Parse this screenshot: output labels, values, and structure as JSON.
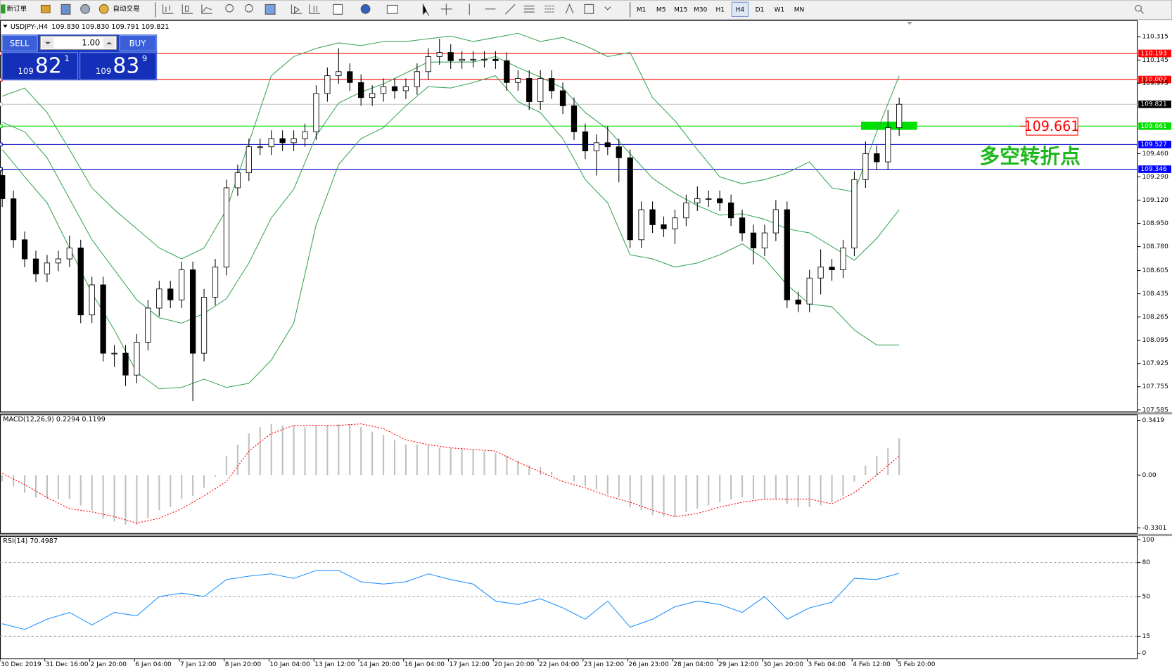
{
  "toolbar": {
    "new_order": "新订单",
    "auto_trading": "自动交易",
    "timeframes": [
      "M1",
      "M5",
      "M15",
      "M30",
      "H1",
      "H4",
      "D1",
      "W1",
      "MN"
    ],
    "active_timeframe": "H4"
  },
  "trade_panel": {
    "sell": "SELL",
    "buy": "BUY",
    "lots": "1.00",
    "sell_price": {
      "big": "109",
      "pips": "82",
      "fraction": "1"
    },
    "buy_price": {
      "big": "109",
      "pips": "83",
      "fraction": "9"
    }
  },
  "chart_data": [
    {
      "type": "candlestick",
      "title": "USDJPY-,H4",
      "subtitle": "109.830 109.830 109.791 109.821",
      "up_color": "#ffffff",
      "down_color": "#000000",
      "open": [
        109.3,
        109.13,
        108.83,
        108.69,
        108.58,
        108.66,
        108.69,
        108.77,
        108.28,
        108.5,
        108.0,
        108.0,
        107.84,
        108.08,
        108.33,
        108.47,
        108.39,
        108.61,
        108.0,
        108.41,
        108.63,
        109.21,
        109.32,
        109.51,
        109.51,
        109.57,
        109.54,
        109.57,
        109.62,
        109.9,
        110.03,
        110.06,
        109.98,
        109.87,
        109.9,
        109.95,
        109.92,
        109.95,
        110.06,
        110.17,
        110.2,
        110.14,
        110.15,
        110.15,
        110.15,
        110.14,
        109.98,
        110.01,
        109.84,
        110.01,
        109.92,
        109.81,
        109.62,
        109.48,
        109.54,
        109.51,
        109.43,
        108.83,
        109.05,
        108.94,
        108.91,
        108.99,
        109.1,
        109.13,
        109.13,
        109.1,
        108.99,
        108.88,
        108.77,
        108.88,
        109.05,
        108.39,
        108.36,
        108.55,
        108.63,
        108.61,
        108.77,
        109.27,
        109.46,
        109.4,
        109.65
      ],
      "high": [
        109.36,
        109.19,
        108.89,
        108.75,
        108.72,
        108.75,
        108.86,
        108.83,
        108.56,
        108.56,
        108.06,
        108.06,
        108.14,
        108.39,
        108.53,
        108.53,
        108.67,
        108.67,
        108.47,
        108.69,
        109.27,
        109.38,
        109.57,
        109.57,
        109.63,
        109.63,
        109.63,
        109.68,
        109.96,
        110.09,
        110.23,
        110.12,
        110.04,
        109.96,
        110.01,
        110.01,
        110.01,
        110.12,
        110.23,
        110.3,
        110.26,
        110.21,
        110.21,
        110.21,
        110.21,
        110.2,
        110.07,
        110.07,
        110.07,
        110.07,
        109.98,
        109.87,
        109.68,
        109.6,
        109.66,
        109.57,
        109.49,
        109.11,
        109.11,
        109.0,
        109.05,
        109.16,
        109.22,
        109.19,
        109.19,
        109.16,
        109.05,
        108.94,
        108.94,
        109.12,
        109.11,
        108.45,
        108.61,
        108.76,
        108.69,
        108.83,
        109.33,
        109.55,
        109.52,
        109.78,
        109.87
      ],
      "low": [
        109.07,
        108.77,
        108.63,
        108.52,
        108.52,
        108.6,
        108.63,
        108.22,
        108.22,
        107.94,
        107.9,
        107.76,
        107.78,
        108.02,
        108.27,
        108.33,
        108.33,
        107.65,
        107.94,
        108.35,
        108.57,
        109.15,
        109.26,
        109.45,
        109.45,
        109.48,
        109.48,
        109.51,
        109.56,
        109.84,
        109.97,
        109.92,
        109.81,
        109.81,
        109.84,
        109.86,
        109.86,
        109.89,
        110.0,
        110.11,
        110.08,
        110.08,
        110.09,
        110.09,
        110.08,
        109.92,
        109.92,
        109.78,
        109.78,
        109.86,
        109.75,
        109.56,
        109.42,
        109.3,
        109.45,
        109.25,
        108.77,
        108.77,
        108.88,
        108.85,
        108.8,
        108.93,
        109.04,
        109.07,
        109.04,
        108.93,
        108.82,
        108.65,
        108.71,
        108.82,
        108.33,
        108.3,
        108.3,
        108.43,
        108.53,
        108.55,
        108.71,
        109.21,
        109.34,
        109.34,
        109.59
      ],
      "close": [
        109.13,
        108.83,
        108.69,
        108.58,
        108.66,
        108.69,
        108.77,
        108.28,
        108.5,
        108.0,
        108.0,
        107.84,
        108.08,
        108.33,
        108.47,
        108.39,
        108.61,
        108.0,
        108.41,
        108.63,
        109.21,
        109.32,
        109.51,
        109.51,
        109.57,
        109.54,
        109.57,
        109.62,
        109.9,
        110.03,
        110.06,
        109.98,
        109.87,
        109.9,
        109.95,
        109.92,
        109.95,
        110.06,
        110.17,
        110.2,
        110.14,
        110.15,
        110.15,
        110.15,
        110.14,
        109.98,
        110.01,
        109.84,
        110.01,
        109.92,
        109.81,
        109.62,
        109.48,
        109.54,
        109.51,
        109.43,
        108.83,
        109.05,
        108.94,
        108.91,
        108.99,
        109.1,
        109.13,
        109.13,
        109.1,
        108.99,
        108.88,
        108.77,
        108.88,
        109.05,
        108.39,
        108.36,
        108.55,
        108.63,
        108.61,
        108.77,
        109.27,
        109.46,
        109.4,
        109.65,
        109.821
      ],
      "bands": {
        "color": "#3aa655",
        "upper": [
          109.88,
          109.94,
          109.76,
          109.49,
          109.21,
          109.05,
          108.91,
          108.77,
          108.69,
          108.77,
          109.05,
          109.54,
          110.03,
          110.17,
          110.23,
          110.27,
          110.25,
          110.28,
          110.28,
          110.3,
          110.32,
          110.28,
          110.31,
          110.34,
          110.28,
          110.31,
          110.25,
          110.17,
          110.2,
          109.87,
          109.7,
          109.49,
          109.29,
          109.24,
          109.27,
          109.32,
          109.4,
          109.21,
          109.18,
          109.62,
          110.03
        ],
        "middle": [
          109.69,
          109.62,
          109.43,
          109.13,
          108.83,
          108.61,
          108.39,
          108.26,
          108.22,
          108.29,
          108.4,
          108.66,
          108.99,
          109.2,
          109.59,
          109.83,
          109.91,
          109.97,
          110.05,
          110.13,
          110.13,
          110.13,
          110.17,
          110.09,
          110.02,
          109.94,
          109.76,
          109.64,
          109.46,
          109.28,
          109.17,
          109.08,
          109.01,
          109.02,
          108.98,
          108.91,
          108.88,
          108.78,
          108.68,
          108.84,
          109.05
        ],
        "lower": [
          109.49,
          109.29,
          109.1,
          108.77,
          108.44,
          108.17,
          107.86,
          107.74,
          107.75,
          107.81,
          107.75,
          107.78,
          107.95,
          108.22,
          108.94,
          109.38,
          109.57,
          109.65,
          109.81,
          109.95,
          109.94,
          109.98,
          110.03,
          109.84,
          109.76,
          109.57,
          109.27,
          109.1,
          108.72,
          108.69,
          108.63,
          108.66,
          108.72,
          108.8,
          108.69,
          108.5,
          108.36,
          108.34,
          108.17,
          108.06,
          108.06
        ]
      },
      "levels": [
        {
          "value": 110.193,
          "color": "#ff0000",
          "box": "#ff0000"
        },
        {
          "value": 110.002,
          "color": "#ff0000",
          "box": "#ff0000"
        },
        {
          "value": 109.821,
          "color": "#c0c0c0",
          "box": "#000000"
        },
        {
          "value": 109.661,
          "color": "#00e000",
          "box": "#00e000"
        },
        {
          "value": 109.527,
          "color": "#0000c8",
          "box": "#0000ff"
        },
        {
          "value": 109.346,
          "color": "#0000c8",
          "box": "#0000ff"
        }
      ],
      "ylim": [
        107.574,
        110.43
      ],
      "yticks": [
        110.315,
        110.145,
        109.975,
        {
          "value": 109.46,
          "label": "109.460"
        },
        {
          "value": 109.29,
          "label": "109.290"
        },
        {
          "value": 109.12,
          "label": "109.120"
        },
        {
          "value": 108.95,
          "label": "108.950"
        },
        {
          "value": 108.78,
          "label": "108.780"
        },
        108.605,
        108.435,
        108.265,
        108.095,
        107.925,
        107.755,
        107.585
      ],
      "x_labels": [
        "30 Dec 2019",
        "31 Dec 16:00",
        "2 Jan 20:00",
        "6 Jan 04:00",
        "7 Jan 12:00",
        "8 Jan 20:00",
        "10 Jan 04:00",
        "13 Jan 12:00",
        "14 Jan 20:00",
        "16 Jan 04:00",
        "17 Jan 12:00",
        "20 Jan 20:00",
        "22 Jan 04:00",
        "23 Jan 12:00",
        "26 Jan 23:00",
        "28 Jan 04:00",
        "29 Jan 12:00",
        "30 Jan 20:00",
        "3 Feb 04:00",
        "4 Feb 12:00",
        "5 Feb 20:00"
      ],
      "annotations": [
        "109.661",
        "多空转折点"
      ]
    },
    {
      "type": "macd",
      "title": "MACD(12,26,9) 0.2294 0.1199",
      "hist_color": "#c0c0c0",
      "signal_color": "#ff0000",
      "histogram": [
        -0.04,
        -0.07,
        -0.11,
        -0.14,
        -0.15,
        -0.15,
        -0.15,
        -0.19,
        -0.22,
        -0.27,
        -0.29,
        -0.31,
        -0.31,
        -0.27,
        -0.22,
        -0.2,
        -0.15,
        -0.13,
        -0.08,
        -0.01,
        0.12,
        0.19,
        0.26,
        0.3,
        0.32,
        0.31,
        0.31,
        0.3,
        0.31,
        0.31,
        0.32,
        0.32,
        0.3,
        0.27,
        0.25,
        0.22,
        0.19,
        0.19,
        0.19,
        0.17,
        0.17,
        0.17,
        0.16,
        0.15,
        0.14,
        0.12,
        0.09,
        0.06,
        0.05,
        0.02,
        0.0,
        -0.04,
        -0.07,
        -0.09,
        -0.12,
        -0.14,
        -0.2,
        -0.22,
        -0.25,
        -0.26,
        -0.26,
        -0.23,
        -0.21,
        -0.19,
        -0.17,
        -0.15,
        -0.14,
        -0.15,
        -0.15,
        -0.15,
        -0.18,
        -0.2,
        -0.2,
        -0.19,
        -0.17,
        -0.13,
        -0.04,
        0.06,
        0.12,
        0.17,
        0.2294
      ],
      "signal": [
        0.01,
        -0.06,
        -0.14,
        -0.21,
        -0.23,
        -0.26,
        -0.3,
        -0.27,
        -0.21,
        -0.13,
        -0.04,
        0.15,
        0.26,
        0.31,
        0.31,
        0.31,
        0.32,
        0.29,
        0.22,
        0.19,
        0.17,
        0.16,
        0.15,
        0.08,
        0.02,
        -0.04,
        -0.08,
        -0.13,
        -0.17,
        -0.22,
        -0.26,
        -0.24,
        -0.2,
        -0.17,
        -0.15,
        -0.15,
        -0.15,
        -0.18,
        -0.11,
        0.0,
        0.1199
      ],
      "ylim": [
        -0.358,
        0.374
      ],
      "yticks": [
        0.3419,
        {
          "value": 0,
          "label": "0.00"
        },
        -0.3301
      ]
    },
    {
      "type": "line",
      "title": "RSI(14) 70.4987",
      "color": "#1e90ff",
      "values": [
        26,
        21,
        30,
        36,
        25,
        36,
        33,
        50,
        53,
        50,
        65,
        68,
        70,
        66,
        73,
        73,
        63,
        61,
        63,
        70,
        65,
        61,
        46,
        43,
        48,
        40,
        30,
        46,
        23,
        30,
        41,
        46,
        43,
        36,
        50,
        30,
        40,
        45,
        66,
        65,
        70.4987
      ],
      "ylim": [
        0,
        100
      ],
      "yticks": [
        100,
        80,
        50,
        15,
        0
      ],
      "levels": [
        80,
        50,
        15
      ]
    }
  ]
}
